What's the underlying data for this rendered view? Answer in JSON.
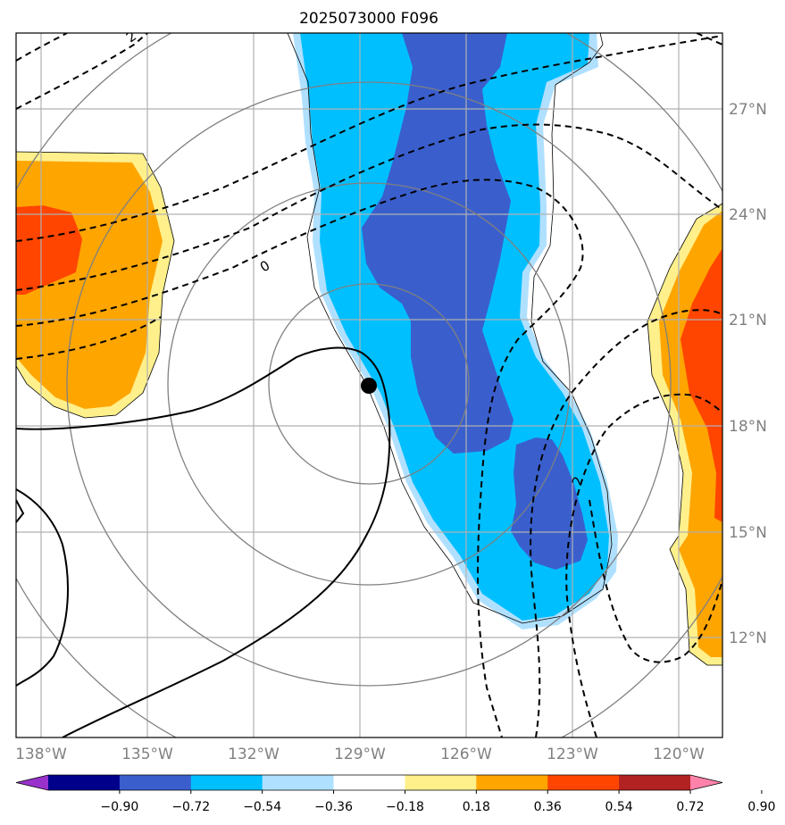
{
  "title": "2025073000 F096",
  "map": {
    "lon_labels": [
      "138°W",
      "135°W",
      "132°W",
      "129°W",
      "126°W",
      "123°W",
      "120°W"
    ],
    "lat_labels": [
      "27°N",
      "24°N",
      "21°N",
      "18°N",
      "15°N",
      "12°N"
    ],
    "center_marker": {
      "lon": "128.8°W",
      "lat": "18.8°N"
    },
    "contour_labels": [
      "2",
      "0",
      "2"
    ],
    "colors": {
      "grid": "#b0b0b0",
      "ring": "#808080",
      "fill_orange": "#ffa500",
      "fill_lightorange": "#fff08c",
      "fill_red": "#ff4500",
      "fill_lightblue": "#b0e0ff",
      "fill_skyblue": "#00bfff",
      "fill_blue": "#3a5fcd"
    }
  },
  "colorbar": {
    "ticks": [
      "−0.90",
      "−0.72",
      "−0.54",
      "−0.36",
      "−0.18",
      "0.18",
      "0.36",
      "0.54",
      "0.72",
      "0.90"
    ],
    "colors": [
      "#9932cc",
      "#00008b",
      "#3a5fcd",
      "#00bfff",
      "#b0e0ff",
      "#ffffff",
      "#fff08c",
      "#ffa500",
      "#ff4500",
      "#b22222",
      "#ff82ab"
    ]
  }
}
